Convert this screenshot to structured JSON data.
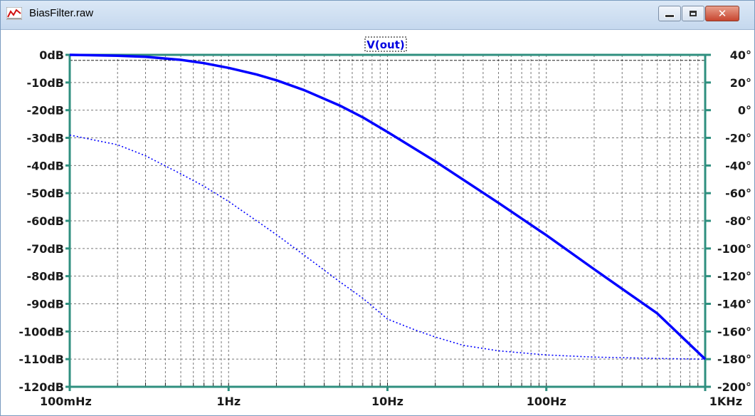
{
  "window": {
    "title": "BiasFilter.raw",
    "icon": "waveform-plot-icon",
    "controls": [
      "minimize-icon",
      "maximize-icon",
      "close-icon"
    ],
    "close_glyph": "✕"
  },
  "chart_data": {
    "type": "line",
    "trace_label": "V(out)",
    "xscale": "log",
    "xlim": [
      0.1,
      1000
    ],
    "x_ticks": [
      {
        "value": 0.1,
        "label": "100mHz"
      },
      {
        "value": 1,
        "label": "1Hz"
      },
      {
        "value": 10,
        "label": "10Hz"
      },
      {
        "value": 100,
        "label": "100Hz"
      },
      {
        "value": 1000,
        "label": "1KHz"
      }
    ],
    "ylim_left": [
      -120,
      0
    ],
    "y_ticks_left": [
      "0dB",
      "-10dB",
      "-20dB",
      "-30dB",
      "-40dB",
      "-50dB",
      "-60dB",
      "-70dB",
      "-80dB",
      "-90dB",
      "-100dB",
      "-110dB",
      "-120dB"
    ],
    "ylim_right": [
      -200,
      40
    ],
    "y_ticks_right": [
      "40°",
      "20°",
      "0°",
      "-20°",
      "-40°",
      "-60°",
      "-80°",
      "-100°",
      "-120°",
      "-140°",
      "-160°",
      "-180°",
      "-200°"
    ],
    "grid": true,
    "reference_line_db": -2,
    "series": [
      {
        "kind": "magnitude",
        "axis": "left",
        "style": "solid",
        "color": "#0000ff",
        "x": [
          0.1,
          0.2,
          0.3,
          0.5,
          0.7,
          1,
          1.5,
          2,
          3,
          5,
          7,
          10,
          20,
          50,
          100,
          200,
          500,
          1000
        ],
        "values": [
          0,
          -0.3,
          -0.7,
          -1.8,
          -3.0,
          -4.7,
          -7.1,
          -9.2,
          -12.8,
          -18.3,
          -22.6,
          -27.9,
          -38.5,
          -53.5,
          -65.2,
          -77.5,
          -93.5,
          -110
        ]
      },
      {
        "kind": "phase",
        "axis": "right",
        "style": "dotted",
        "color": "#0000ff",
        "x": [
          0.1,
          0.2,
          0.3,
          0.5,
          0.7,
          1,
          1.5,
          2,
          3,
          5,
          7,
          10,
          15,
          20,
          30,
          50,
          100,
          200,
          500,
          1000
        ],
        "values": [
          -18,
          -25,
          -33,
          -46,
          -55,
          -66,
          -80,
          -90,
          -105,
          -124,
          -136,
          -151,
          -159,
          -164,
          -170,
          -174,
          -177,
          -178.5,
          -179.5,
          -180
        ]
      }
    ]
  }
}
